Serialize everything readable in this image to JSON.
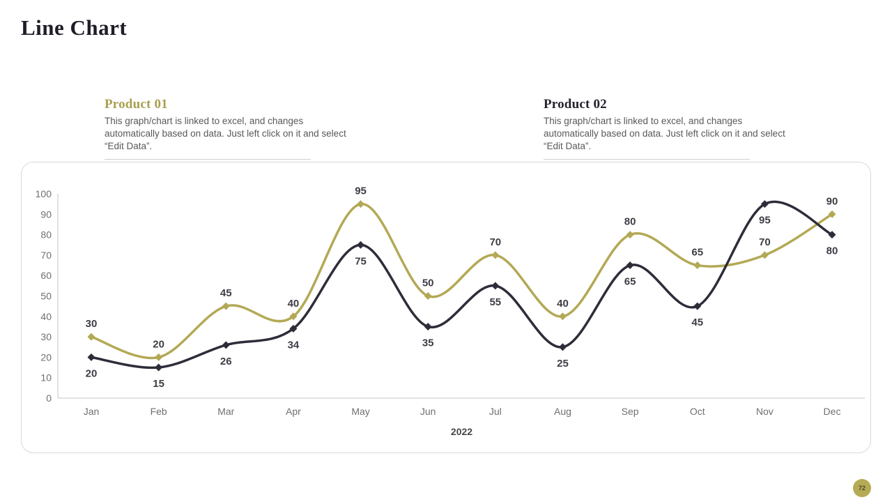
{
  "page": {
    "title": "Line Chart",
    "page_number": "72"
  },
  "colors": {
    "accent_olive": "#b3a955",
    "accent_dark": "#2d2d3a",
    "heading_olive": "#a8a050",
    "heading_dark": "#23232d",
    "body_text": "#595959",
    "axis_gray": "#c6c6c6",
    "label_gray": "#6f6f6f",
    "badge_bg": "#b5ab54"
  },
  "legends": [
    {
      "name": "Product 01",
      "description": "This graph/chart is linked to excel, and changes automatically based on data. Just left click on it and select “Edit Data”."
    },
    {
      "name": "Product 02",
      "description": "This graph/chart is linked to excel, and changes automatically based on data. Just left click on it and select “Edit Data”."
    }
  ],
  "chart_data": {
    "type": "line",
    "x": [
      "Jan",
      "Feb",
      "Mar",
      "Apr",
      "May",
      "Jun",
      "Jul",
      "Aug",
      "Sep",
      "Oct",
      "Nov",
      "Dec"
    ],
    "series": [
      {
        "name": "Product 01",
        "color": "#b3a955",
        "label_position": "above",
        "values": [
          30,
          20,
          45,
          40,
          95,
          50,
          70,
          40,
          80,
          65,
          70,
          90
        ]
      },
      {
        "name": "Product 02",
        "color": "#2d2d3a",
        "label_position": "below",
        "values": [
          20,
          15,
          26,
          34,
          75,
          35,
          55,
          25,
          65,
          45,
          95,
          80
        ]
      }
    ],
    "xlabel": "2022",
    "ylabel": "",
    "ylim": [
      0,
      100
    ],
    "yticks": [
      0,
      10,
      20,
      30,
      40,
      50,
      60,
      70,
      80,
      90,
      100
    ],
    "grid": false,
    "marker": "diamond",
    "smooth": true,
    "legend_position": "none",
    "data_labels": true
  }
}
